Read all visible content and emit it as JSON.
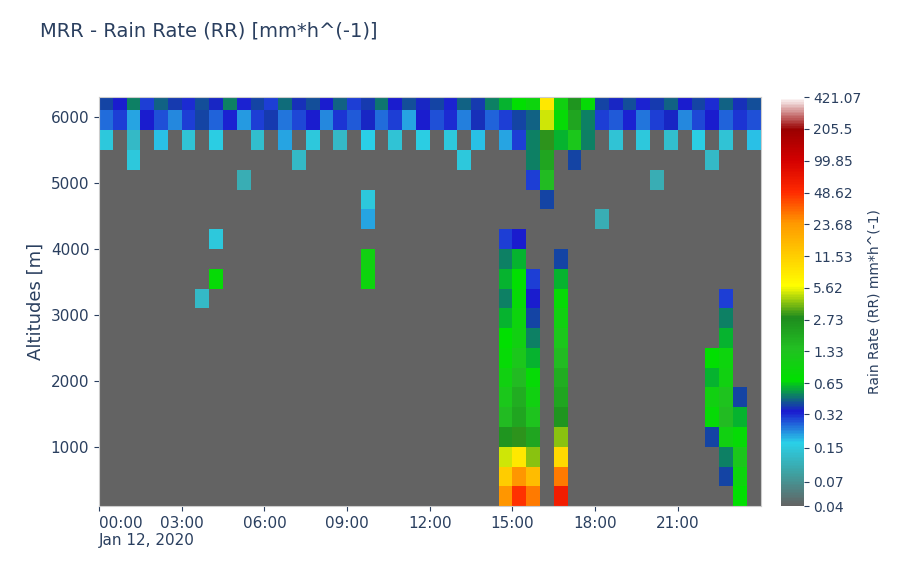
{
  "chart_data": {
    "type": "heatmap",
    "title": "MRR - Rain Rate (RR) [mm*h^(-1)]",
    "y_label": "Altitudes [m]",
    "colorbar_label": "Rain Rate (RR) mm*h^(-1)",
    "x": [
      0.25,
      0.75,
      1.25,
      1.75,
      2.25,
      2.75,
      3.25,
      3.75,
      4.25,
      4.75,
      5.25,
      5.75,
      6.25,
      6.75,
      7.25,
      7.75,
      8.25,
      8.75,
      9.25,
      9.75,
      10.25,
      10.75,
      11.25,
      11.75,
      12.25,
      12.75,
      13.25,
      13.75,
      14.25,
      14.75,
      15.25,
      15.75,
      16.25,
      16.75,
      17.25,
      17.75,
      18.25,
      18.75,
      19.25,
      19.75,
      20.25,
      20.75,
      21.25,
      21.75,
      22.25,
      22.75,
      23.25,
      23.75
    ],
    "y": [
      250,
      550,
      850,
      1150,
      1450,
      1750,
      2050,
      2350,
      2650,
      2950,
      3250,
      3550,
      3850,
      4150,
      4450,
      4750,
      5050,
      5350,
      5650,
      5950,
      6250
    ],
    "z": [
      [
        null,
        null,
        null,
        null,
        null,
        null,
        null,
        null,
        null,
        null,
        null,
        null,
        null,
        null,
        null,
        null,
        null,
        null,
        null,
        null,
        null,
        null,
        null,
        null,
        null,
        null,
        null,
        null,
        null,
        25,
        48,
        30,
        null,
        60,
        null,
        null,
        null,
        null,
        null,
        null,
        null,
        null,
        null,
        null,
        null,
        null,
        0.7,
        null
      ],
      [
        null,
        null,
        null,
        null,
        null,
        null,
        null,
        null,
        null,
        null,
        null,
        null,
        null,
        null,
        null,
        null,
        null,
        null,
        null,
        null,
        null,
        null,
        null,
        null,
        null,
        null,
        null,
        null,
        null,
        12,
        25,
        15,
        null,
        30,
        null,
        null,
        null,
        null,
        null,
        null,
        null,
        null,
        null,
        null,
        null,
        0.4,
        0.9,
        null
      ],
      [
        null,
        null,
        null,
        null,
        null,
        null,
        null,
        null,
        null,
        null,
        null,
        null,
        null,
        null,
        null,
        null,
        null,
        null,
        null,
        null,
        null,
        null,
        null,
        null,
        null,
        null,
        null,
        null,
        null,
        5,
        8,
        4,
        null,
        10,
        null,
        null,
        null,
        null,
        null,
        null,
        null,
        null,
        null,
        null,
        null,
        0.5,
        1.2,
        null
      ],
      [
        null,
        null,
        null,
        null,
        null,
        null,
        null,
        null,
        null,
        null,
        null,
        null,
        null,
        null,
        null,
        null,
        null,
        null,
        null,
        null,
        null,
        null,
        null,
        null,
        null,
        null,
        null,
        null,
        null,
        2.5,
        3,
        2,
        null,
        4,
        null,
        null,
        null,
        null,
        null,
        null,
        null,
        null,
        null,
        null,
        0.4,
        1.0,
        0.8,
        null
      ],
      [
        null,
        null,
        null,
        null,
        null,
        null,
        null,
        null,
        null,
        null,
        null,
        null,
        null,
        null,
        null,
        null,
        null,
        null,
        null,
        null,
        null,
        null,
        null,
        null,
        null,
        null,
        null,
        null,
        null,
        1.5,
        2,
        1.3,
        null,
        2.5,
        null,
        null,
        null,
        null,
        null,
        null,
        null,
        null,
        null,
        null,
        0.8,
        1.5,
        0.6,
        null
      ],
      [
        null,
        null,
        null,
        null,
        null,
        null,
        null,
        null,
        null,
        null,
        null,
        null,
        null,
        null,
        null,
        null,
        null,
        null,
        null,
        null,
        null,
        null,
        null,
        null,
        null,
        null,
        null,
        null,
        null,
        1.2,
        1.8,
        1.0,
        null,
        2,
        null,
        null,
        null,
        null,
        null,
        null,
        null,
        null,
        null,
        null,
        1.0,
        1.3,
        0.4,
        null
      ],
      [
        null,
        null,
        null,
        null,
        null,
        null,
        null,
        null,
        null,
        null,
        null,
        null,
        null,
        null,
        null,
        null,
        null,
        null,
        null,
        null,
        null,
        null,
        null,
        null,
        null,
        null,
        null,
        null,
        null,
        1.0,
        1.5,
        0.8,
        null,
        1.8,
        null,
        null,
        null,
        null,
        null,
        null,
        null,
        null,
        null,
        null,
        0.6,
        1.0,
        null,
        null
      ],
      [
        null,
        null,
        null,
        null,
        null,
        null,
        null,
        null,
        null,
        null,
        null,
        null,
        null,
        null,
        null,
        null,
        null,
        null,
        null,
        null,
        null,
        null,
        null,
        null,
        null,
        null,
        null,
        null,
        null,
        0.8,
        1.2,
        0.6,
        null,
        1.5,
        null,
        null,
        null,
        null,
        null,
        null,
        null,
        null,
        null,
        null,
        0.7,
        0.9,
        null,
        null
      ],
      [
        null,
        null,
        null,
        null,
        null,
        null,
        null,
        null,
        null,
        null,
        null,
        null,
        null,
        null,
        null,
        null,
        null,
        null,
        null,
        null,
        null,
        null,
        null,
        null,
        null,
        null,
        null,
        null,
        null,
        0.7,
        1.0,
        0.5,
        null,
        1.2,
        null,
        null,
        null,
        null,
        null,
        null,
        null,
        null,
        null,
        null,
        null,
        0.6,
        null,
        null
      ],
      [
        null,
        null,
        null,
        null,
        null,
        null,
        null,
        null,
        null,
        null,
        null,
        null,
        null,
        null,
        null,
        null,
        null,
        null,
        null,
        null,
        null,
        null,
        null,
        null,
        null,
        null,
        null,
        null,
        null,
        0.6,
        0.9,
        0.4,
        null,
        1.0,
        null,
        null,
        null,
        null,
        null,
        null,
        null,
        null,
        null,
        null,
        null,
        0.5,
        null,
        null
      ],
      [
        null,
        null,
        null,
        null,
        null,
        null,
        null,
        0.12,
        null,
        null,
        null,
        null,
        null,
        null,
        null,
        null,
        null,
        null,
        null,
        null,
        null,
        null,
        null,
        null,
        null,
        null,
        null,
        null,
        null,
        0.5,
        0.8,
        0.35,
        null,
        0.8,
        null,
        null,
        null,
        null,
        null,
        null,
        null,
        null,
        null,
        null,
        null,
        0.3,
        null,
        null
      ],
      [
        null,
        null,
        null,
        null,
        null,
        null,
        null,
        null,
        0.8,
        null,
        null,
        null,
        null,
        null,
        null,
        null,
        null,
        null,
        null,
        0.9,
        null,
        null,
        null,
        null,
        null,
        null,
        null,
        null,
        null,
        0.6,
        0.7,
        0.3,
        null,
        0.6,
        null,
        null,
        null,
        null,
        null,
        null,
        null,
        null,
        null,
        null,
        null,
        null,
        null,
        null
      ],
      [
        null,
        null,
        null,
        null,
        null,
        null,
        null,
        null,
        null,
        null,
        null,
        null,
        null,
        null,
        null,
        null,
        null,
        null,
        null,
        1.0,
        null,
        null,
        null,
        null,
        null,
        null,
        null,
        null,
        null,
        0.5,
        0.6,
        null,
        null,
        0.4,
        null,
        null,
        null,
        null,
        null,
        null,
        null,
        null,
        null,
        null,
        null,
        null,
        null,
        null
      ],
      [
        null,
        null,
        null,
        null,
        null,
        null,
        null,
        null,
        0.15,
        null,
        null,
        null,
        null,
        null,
        null,
        null,
        null,
        null,
        null,
        null,
        null,
        null,
        null,
        null,
        null,
        null,
        null,
        null,
        null,
        0.3,
        0.35,
        null,
        null,
        null,
        null,
        null,
        null,
        null,
        null,
        null,
        null,
        null,
        null,
        null,
        null,
        null,
        null,
        null
      ],
      [
        null,
        null,
        null,
        null,
        null,
        null,
        null,
        null,
        null,
        null,
        null,
        null,
        null,
        null,
        null,
        null,
        null,
        null,
        null,
        0.2,
        null,
        null,
        null,
        null,
        null,
        null,
        null,
        null,
        null,
        null,
        null,
        null,
        null,
        null,
        null,
        null,
        0.1,
        null,
        null,
        null,
        null,
        null,
        null,
        null,
        null,
        null,
        null,
        null
      ],
      [
        null,
        null,
        null,
        null,
        null,
        null,
        null,
        null,
        null,
        null,
        null,
        null,
        null,
        null,
        null,
        null,
        null,
        null,
        null,
        0.15,
        null,
        null,
        null,
        null,
        null,
        null,
        null,
        null,
        null,
        null,
        null,
        null,
        0.4,
        null,
        null,
        null,
        null,
        null,
        null,
        null,
        null,
        null,
        null,
        null,
        null,
        null,
        null,
        null
      ],
      [
        null,
        null,
        null,
        null,
        null,
        null,
        null,
        null,
        null,
        null,
        0.1,
        null,
        null,
        null,
        null,
        null,
        null,
        null,
        null,
        null,
        null,
        null,
        null,
        null,
        null,
        null,
        null,
        null,
        null,
        null,
        null,
        0.3,
        1.5,
        null,
        null,
        null,
        null,
        null,
        null,
        null,
        0.1,
        null,
        null,
        null,
        null,
        null,
        null,
        null
      ],
      [
        null,
        null,
        0.15,
        null,
        null,
        null,
        null,
        null,
        null,
        null,
        null,
        null,
        null,
        null,
        0.12,
        null,
        null,
        null,
        null,
        null,
        null,
        null,
        null,
        null,
        null,
        null,
        0.15,
        null,
        null,
        null,
        null,
        0.5,
        2.0,
        null,
        0.4,
        null,
        null,
        null,
        null,
        null,
        null,
        null,
        null,
        null,
        0.12,
        null,
        null,
        null
      ],
      [
        0.15,
        null,
        0.12,
        null,
        0.18,
        null,
        0.14,
        null,
        0.16,
        null,
        null,
        0.13,
        null,
        0.2,
        null,
        0.15,
        null,
        0.12,
        null,
        0.17,
        null,
        0.14,
        null,
        0.16,
        null,
        0.15,
        null,
        0.18,
        null,
        0.2,
        0.3,
        0.5,
        3.0,
        0.6,
        1.2,
        0.5,
        null,
        0.14,
        null,
        0.15,
        null,
        0.13,
        null,
        0.16,
        null,
        0.14,
        null,
        0.18
      ],
      [
        0.25,
        0.3,
        0.2,
        0.35,
        0.28,
        0.22,
        0.3,
        0.4,
        0.26,
        0.33,
        0.21,
        0.3,
        0.38,
        0.24,
        0.29,
        0.35,
        0.22,
        0.31,
        0.27,
        0.36,
        0.25,
        0.3,
        0.2,
        0.34,
        0.28,
        0.32,
        0.23,
        0.37,
        0.26,
        0.3,
        0.4,
        0.45,
        5.0,
        0.8,
        2.0,
        0.5,
        0.3,
        0.27,
        0.33,
        0.24,
        0.3,
        0.36,
        0.22,
        0.29,
        0.34,
        0.26,
        0.31,
        0.28
      ],
      [
        0.4,
        0.35,
        0.5,
        0.3,
        0.45,
        0.38,
        0.32,
        0.42,
        0.36,
        0.5,
        0.33,
        0.4,
        0.3,
        0.46,
        0.37,
        0.41,
        0.35,
        0.44,
        0.3,
        0.39,
        0.48,
        0.34,
        0.42,
        0.36,
        0.4,
        0.33,
        0.45,
        0.38,
        0.5,
        0.6,
        0.7,
        0.9,
        8.0,
        1.0,
        2.5,
        0.8,
        0.4,
        0.36,
        0.42,
        0.33,
        0.38,
        0.45,
        0.35,
        0.4,
        0.32,
        0.44,
        0.37,
        0.41
      ]
    ],
    "xlim": [
      0,
      24
    ],
    "xticks": [
      {
        "value": 0,
        "label": "00:00\nJan 12, 2020"
      },
      {
        "value": 3,
        "label": "03:00"
      },
      {
        "value": 6,
        "label": "06:00"
      },
      {
        "value": 9,
        "label": "09:00"
      },
      {
        "value": 12,
        "label": "12:00"
      },
      {
        "value": 15,
        "label": "15:00"
      },
      {
        "value": 18,
        "label": "18:00"
      },
      {
        "value": 21,
        "label": "21:00"
      }
    ],
    "ylim": [
      100,
      6300
    ],
    "yticks": [
      1000,
      2000,
      3000,
      4000,
      5000,
      6000
    ],
    "colorbar_range": [
      0.04,
      421.07
    ],
    "colorbar_ticks": [
      0.04,
      0.07,
      0.15,
      0.32,
      0.65,
      1.33,
      2.73,
      5.62,
      11.53,
      23.68,
      48.62,
      99.85,
      205.5,
      421.07
    ]
  }
}
